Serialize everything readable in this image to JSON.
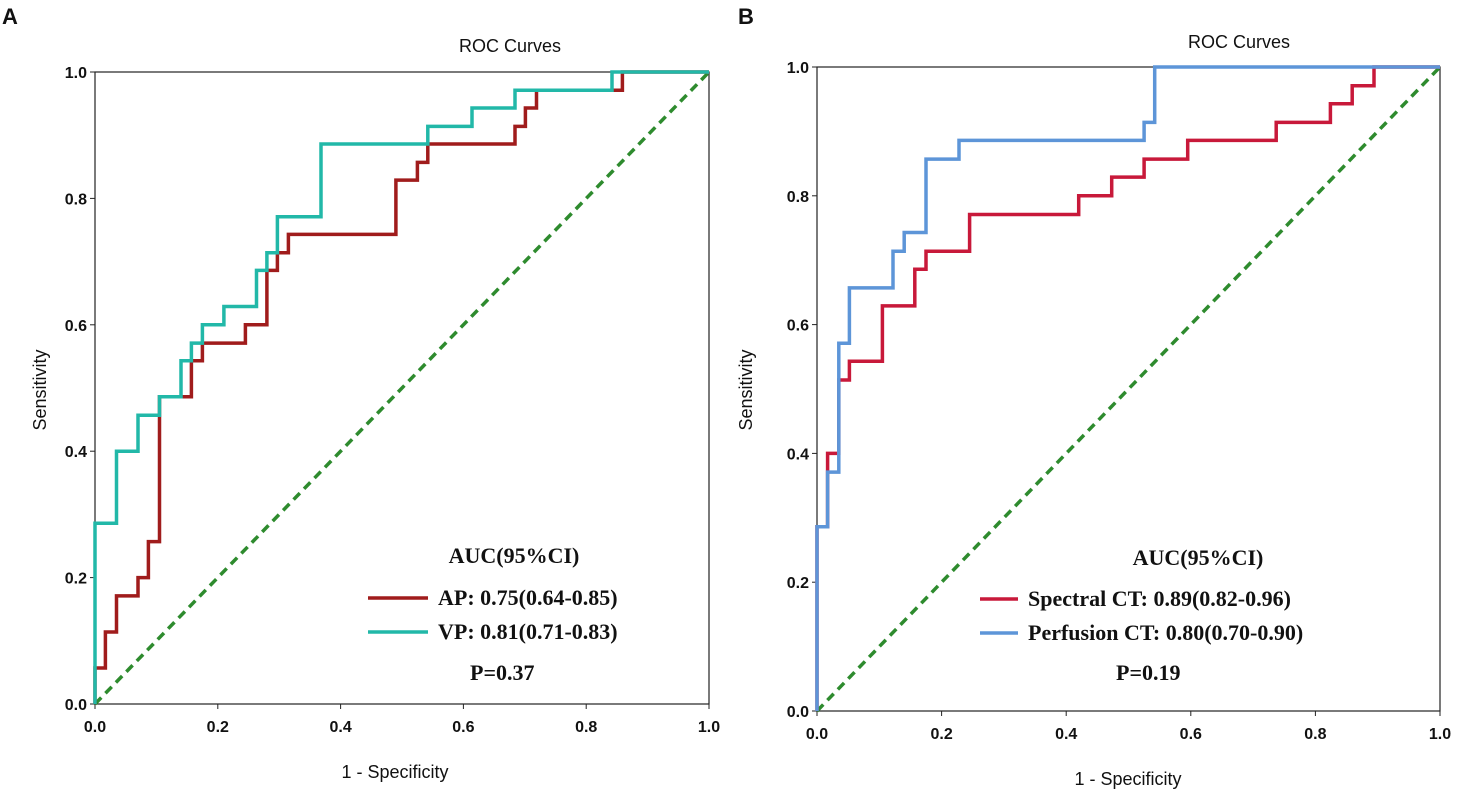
{
  "colors": {
    "ap": "#a01c1c",
    "vp": "#22b8a8",
    "spectral": "#c8193a",
    "perfusion": "#5d95d8",
    "reference": "#2e8b2e",
    "axis": "#222222"
  },
  "chart_data": [
    {
      "panel_label": "A",
      "type": "line",
      "title": "ROC Curves",
      "xlabel": "1 - Specificity",
      "ylabel": "Sensitivity",
      "xlim": [
        0,
        1
      ],
      "ylim": [
        0,
        1
      ],
      "xticks": [
        "0.0",
        "0.2",
        "0.4",
        "0.6",
        "0.8",
        "1.0"
      ],
      "yticks": [
        "0.0",
        "0.2",
        "0.4",
        "0.6",
        "0.8",
        "1.0"
      ],
      "legend_title": "AUC(95%CI)",
      "p_value": "P=0.37",
      "series": [
        {
          "name": "AP",
          "label": "AP: 0.75(0.64-0.85)",
          "color": "#a01c1c",
          "x": [
            0,
            0,
            0.017,
            0.017,
            0.035,
            0.035,
            0.07,
            0.07,
            0.087,
            0.087,
            0.105,
            0.105,
            0.157,
            0.157,
            0.175,
            0.175,
            0.245,
            0.245,
            0.28,
            0.28,
            0.297,
            0.297,
            0.315,
            0.315,
            0.49,
            0.49,
            0.525,
            0.525,
            0.542,
            0.542,
            0.684,
            0.684,
            0.701,
            0.701,
            0.719,
            0.719,
            0.842,
            0.842,
            0.859,
            0.859,
            1.0
          ],
          "y": [
            0,
            0.057,
            0.057,
            0.114,
            0.114,
            0.171,
            0.171,
            0.2,
            0.2,
            0.257,
            0.257,
            0.486,
            0.486,
            0.543,
            0.543,
            0.571,
            0.571,
            0.6,
            0.6,
            0.686,
            0.686,
            0.714,
            0.714,
            0.743,
            0.743,
            0.829,
            0.829,
            0.857,
            0.857,
            0.886,
            0.886,
            0.914,
            0.914,
            0.943,
            0.943,
            0.971,
            0.971,
            0.971,
            0.971,
            1.0,
            1.0
          ]
        },
        {
          "name": "VP",
          "label": "VP: 0.81(0.71-0.83)",
          "color": "#22b8a8",
          "x": [
            0,
            0,
            0.035,
            0.035,
            0.07,
            0.07,
            0.105,
            0.105,
            0.14,
            0.14,
            0.157,
            0.157,
            0.175,
            0.175,
            0.21,
            0.21,
            0.263,
            0.263,
            0.28,
            0.28,
            0.297,
            0.297,
            0.368,
            0.368,
            0.542,
            0.542,
            0.614,
            0.614,
            0.684,
            0.684,
            0.842,
            0.842,
            1.0
          ],
          "y": [
            0,
            0.286,
            0.286,
            0.4,
            0.4,
            0.457,
            0.457,
            0.486,
            0.486,
            0.543,
            0.543,
            0.571,
            0.571,
            0.6,
            0.6,
            0.629,
            0.629,
            0.686,
            0.686,
            0.714,
            0.714,
            0.771,
            0.771,
            0.886,
            0.886,
            0.914,
            0.914,
            0.943,
            0.943,
            0.971,
            0.971,
            1.0,
            1.0
          ]
        }
      ]
    },
    {
      "panel_label": "B",
      "type": "line",
      "title": "ROC Curves",
      "xlabel": "1 - Specificity",
      "ylabel": "Sensitivity",
      "xlim": [
        0,
        1
      ],
      "ylim": [
        0,
        1
      ],
      "xticks": [
        "0.0",
        "0.2",
        "0.4",
        "0.6",
        "0.8",
        "1.0"
      ],
      "yticks": [
        "0.0",
        "0.2",
        "0.4",
        "0.6",
        "0.8",
        "1.0"
      ],
      "legend_title": "AUC(95%CI)",
      "p_value": "P=0.19",
      "series": [
        {
          "name": "Spectral CT",
          "label": "Spectral CT: 0.89(0.82-0.96)",
          "color": "#c8193a",
          "x": [
            0,
            0,
            0.017,
            0.017,
            0.035,
            0.035,
            0.052,
            0.052,
            0.105,
            0.105,
            0.157,
            0.157,
            0.175,
            0.175,
            0.245,
            0.245,
            0.42,
            0.42,
            0.473,
            0.473,
            0.525,
            0.525,
            0.595,
            0.595,
            0.737,
            0.737,
            0.824,
            0.824,
            0.859,
            0.859,
            0.894,
            0.894,
            1.0
          ],
          "y": [
            0,
            0.286,
            0.286,
            0.4,
            0.4,
            0.514,
            0.514,
            0.543,
            0.543,
            0.629,
            0.629,
            0.686,
            0.686,
            0.714,
            0.714,
            0.771,
            0.771,
            0.8,
            0.8,
            0.829,
            0.829,
            0.857,
            0.857,
            0.886,
            0.886,
            0.914,
            0.914,
            0.943,
            0.943,
            0.971,
            0.971,
            1.0,
            1.0
          ]
        },
        {
          "name": "Perfusion CT",
          "label": "Perfusion CT: 0.80(0.70-0.90)",
          "color": "#5d95d8",
          "x": [
            0,
            0,
            0.017,
            0.017,
            0.035,
            0.035,
            0.052,
            0.052,
            0.122,
            0.122,
            0.14,
            0.14,
            0.175,
            0.175,
            0.228,
            0.228,
            0.525,
            0.525,
            0.542,
            0.542,
            1.0
          ],
          "y": [
            0,
            0.286,
            0.286,
            0.371,
            0.371,
            0.571,
            0.571,
            0.657,
            0.657,
            0.714,
            0.714,
            0.743,
            0.743,
            0.857,
            0.857,
            0.886,
            0.886,
            0.914,
            0.914,
            1.0,
            1.0
          ]
        }
      ]
    }
  ]
}
